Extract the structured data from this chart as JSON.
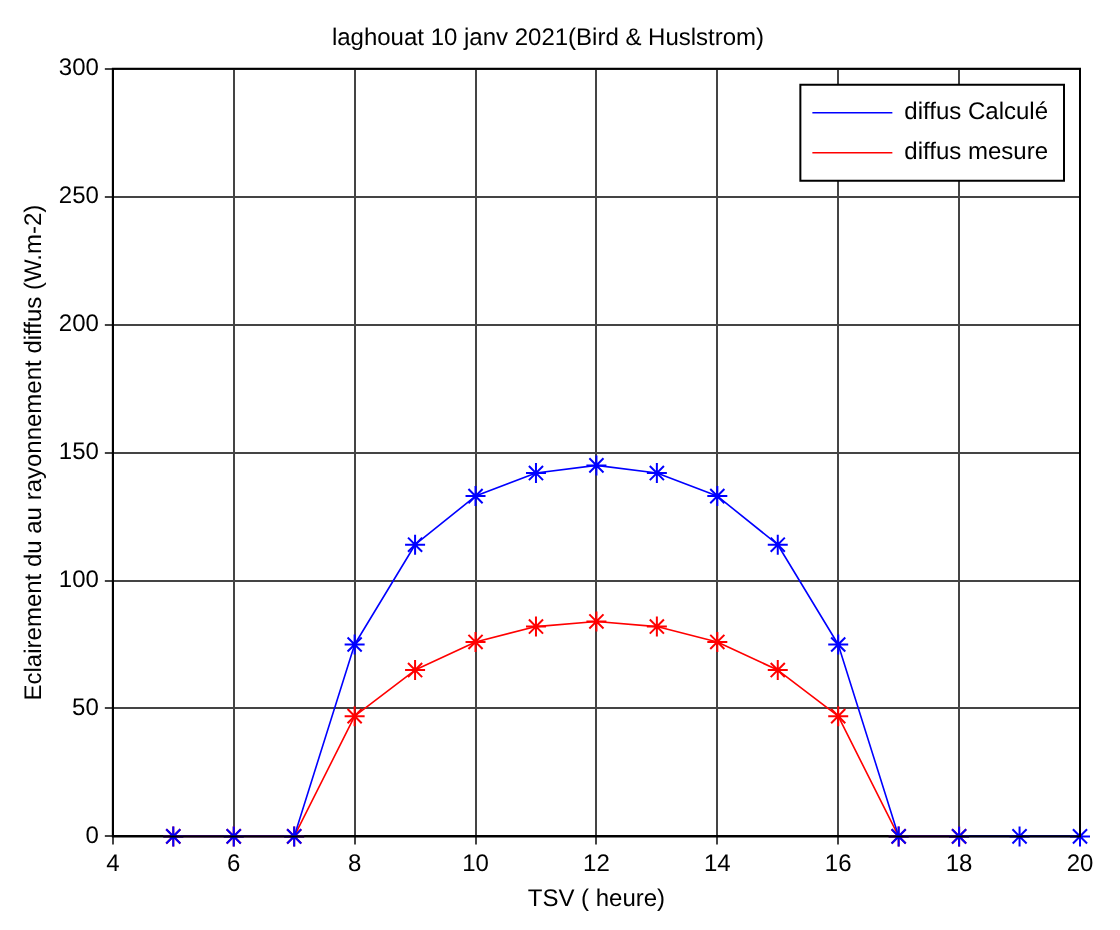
{
  "chart_data": {
    "type": "line",
    "title": "laghouat 10 janv 2021(Bird & Huslstrom)",
    "xlabel": "TSV ( heure)",
    "ylabel": "Eclairement du au rayonnement diffus (W.m-2)",
    "x": [
      5,
      6,
      7,
      8,
      9,
      10,
      11,
      12,
      13,
      14,
      15,
      16,
      17,
      18,
      19,
      20
    ],
    "series": [
      {
        "name": "diffus Calculé",
        "color": "#0000ff",
        "values": [
          0,
          0,
          0,
          75,
          114,
          133,
          142,
          145,
          142,
          133,
          114,
          75,
          0,
          0,
          0,
          0
        ]
      },
      {
        "name": "diffus mesure",
        "color": "#ff0000",
        "values": [
          0,
          0,
          0,
          47,
          65,
          76,
          82,
          84,
          82,
          76,
          65,
          47,
          0,
          0,
          null,
          null
        ]
      }
    ],
    "xlim": [
      4,
      20
    ],
    "xticks": [
      4,
      6,
      8,
      10,
      12,
      14,
      16,
      18,
      20
    ],
    "ylim": [
      0,
      300
    ],
    "yticks": [
      0,
      50,
      100,
      150,
      200,
      250,
      300
    ],
    "grid": true,
    "legend": "top right",
    "marker": "cross",
    "line_style": "solid"
  }
}
